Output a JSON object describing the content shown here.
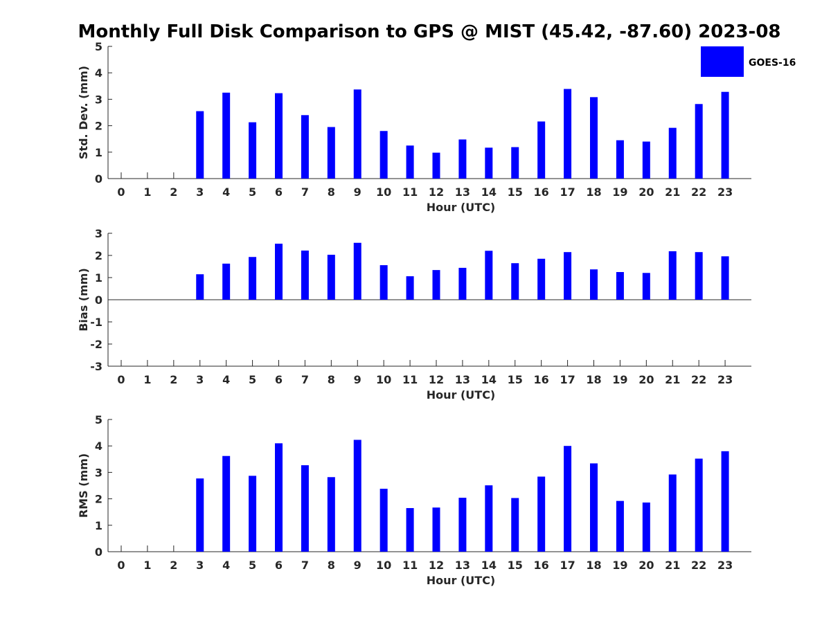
{
  "title": "Monthly Full Disk Comparison to GPS @ MIST (45.42, -87.60) 2023-08",
  "legend": {
    "label": "GOES-16",
    "color": "#0000ff",
    "placement": "top-right"
  },
  "chart_data": [
    {
      "type": "bar",
      "xlabel": "Hour (UTC)",
      "ylabel": "Std. Dev. (mm)",
      "ylim": [
        0,
        5
      ],
      "yticks": [
        "0",
        "1",
        "2",
        "3",
        "4",
        "5"
      ],
      "categories": [
        "0",
        "1",
        "2",
        "3",
        "4",
        "5",
        "6",
        "7",
        "8",
        "9",
        "10",
        "11",
        "12",
        "13",
        "14",
        "15",
        "16",
        "17",
        "18",
        "19",
        "20",
        "21",
        "22",
        "23"
      ],
      "series": [
        {
          "name": "GOES-16",
          "values": [
            null,
            null,
            null,
            2.55,
            3.25,
            2.13,
            3.23,
            2.4,
            1.95,
            3.37,
            1.8,
            1.25,
            0.98,
            1.48,
            1.17,
            1.19,
            2.16,
            3.39,
            3.08,
            1.45,
            1.4,
            1.92,
            2.82,
            3.28
          ]
        }
      ],
      "color": "#0000ff",
      "grid": false
    },
    {
      "type": "bar",
      "xlabel": "Hour (UTC)",
      "ylabel": "Bias (mm)",
      "ylim": [
        -3,
        3
      ],
      "yticks": [
        "-3",
        "-2",
        "-1",
        "0",
        "1",
        "2",
        "3"
      ],
      "categories": [
        "0",
        "1",
        "2",
        "3",
        "4",
        "5",
        "6",
        "7",
        "8",
        "9",
        "10",
        "11",
        "12",
        "13",
        "14",
        "15",
        "16",
        "17",
        "18",
        "19",
        "20",
        "21",
        "22",
        "23"
      ],
      "series": [
        {
          "name": "GOES-16",
          "values": [
            null,
            null,
            null,
            1.15,
            1.63,
            1.93,
            2.53,
            2.22,
            2.03,
            2.57,
            1.56,
            1.06,
            1.34,
            1.44,
            2.21,
            1.65,
            1.85,
            2.15,
            1.37,
            1.25,
            1.21,
            2.19,
            2.15,
            1.96
          ]
        }
      ],
      "color": "#0000ff",
      "grid": false
    },
    {
      "type": "bar",
      "xlabel": "Hour (UTC)",
      "ylabel": "RMS (mm)",
      "ylim": [
        0,
        5
      ],
      "yticks": [
        "0",
        "1",
        "2",
        "3",
        "4",
        "5"
      ],
      "categories": [
        "0",
        "1",
        "2",
        "3",
        "4",
        "5",
        "6",
        "7",
        "8",
        "9",
        "10",
        "11",
        "12",
        "13",
        "14",
        "15",
        "16",
        "17",
        "18",
        "19",
        "20",
        "21",
        "22",
        "23"
      ],
      "series": [
        {
          "name": "GOES-16",
          "values": [
            null,
            null,
            null,
            2.77,
            3.62,
            2.87,
            4.1,
            3.27,
            2.82,
            4.23,
            2.38,
            1.65,
            1.67,
            2.04,
            2.51,
            2.03,
            2.84,
            4.0,
            3.34,
            1.92,
            1.86,
            2.92,
            3.52,
            3.8
          ]
        }
      ],
      "color": "#0000ff",
      "grid": false
    }
  ]
}
